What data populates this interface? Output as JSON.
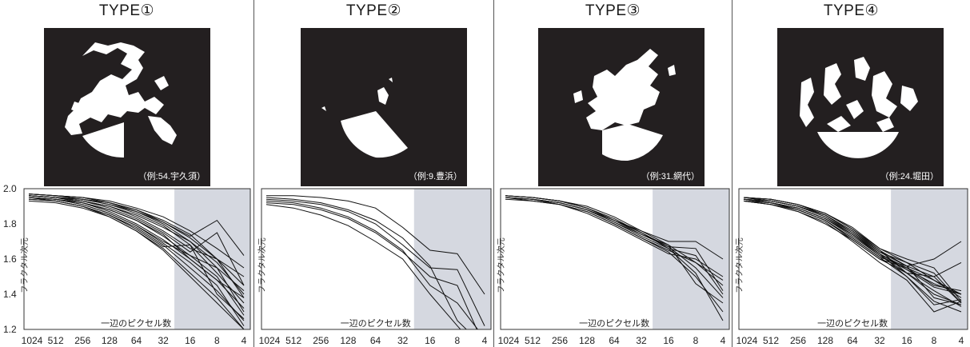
{
  "panels": [
    {
      "title": "TYPE①",
      "caption": "（例:54.宇久須）"
    },
    {
      "title": "TYPE②",
      "caption": "（例:9.豊浜）"
    },
    {
      "title": "TYPE③",
      "caption": "（例:31.網代）"
    },
    {
      "title": "TYPE④",
      "caption": "（例:24.堀田）"
    }
  ],
  "colors": {
    "shade": "#d5d8e0",
    "line": "#111111",
    "photo_bg": "#231f20"
  },
  "chart_data": [
    {
      "type": "line",
      "title": "TYPE①",
      "xlabel": "一辺のピクセル数",
      "ylabel": "フラクタル次元",
      "x": [
        1024,
        512,
        256,
        128,
        64,
        32,
        16,
        8,
        4
      ],
      "xticklabels": [
        "1024",
        "512",
        "256",
        "128",
        "64",
        "32",
        "16",
        "8",
        "4"
      ],
      "xscale": "log2-reversed",
      "ylim": [
        1.2,
        2.0
      ],
      "yticks": [
        "2.0",
        "1.8",
        "1.6",
        "1.4",
        "1.2"
      ],
      "shaded_x_range": [
        24,
        4
      ],
      "series": [
        {
          "values": [
            1.97,
            1.96,
            1.95,
            1.92,
            1.88,
            1.82,
            1.74,
            1.6,
            1.38
          ]
        },
        {
          "values": [
            1.96,
            1.95,
            1.93,
            1.9,
            1.85,
            1.78,
            1.7,
            1.58,
            1.4
          ]
        },
        {
          "values": [
            1.96,
            1.95,
            1.94,
            1.91,
            1.87,
            1.8,
            1.7,
            1.55,
            1.3
          ]
        },
        {
          "values": [
            1.95,
            1.94,
            1.92,
            1.88,
            1.82,
            1.73,
            1.62,
            1.5,
            1.28
          ]
        },
        {
          "values": [
            1.97,
            1.96,
            1.95,
            1.93,
            1.89,
            1.84,
            1.76,
            1.66,
            1.55
          ]
        },
        {
          "values": [
            1.95,
            1.94,
            1.91,
            1.86,
            1.79,
            1.69,
            1.58,
            1.45,
            1.22
          ]
        },
        {
          "values": [
            1.96,
            1.95,
            1.93,
            1.89,
            1.83,
            1.75,
            1.64,
            1.75,
            1.45
          ]
        },
        {
          "values": [
            1.94,
            1.93,
            1.9,
            1.85,
            1.78,
            1.68,
            1.55,
            1.42,
            1.25
          ]
        },
        {
          "values": [
            1.96,
            1.95,
            1.94,
            1.92,
            1.88,
            1.81,
            1.72,
            1.6,
            1.45
          ]
        },
        {
          "values": [
            1.93,
            1.92,
            1.89,
            1.84,
            1.76,
            1.66,
            1.52,
            1.38,
            1.2
          ]
        },
        {
          "values": [
            1.97,
            1.96,
            1.94,
            1.91,
            1.86,
            1.79,
            1.68,
            1.52,
            1.35
          ]
        },
        {
          "values": [
            1.95,
            1.94,
            1.92,
            1.87,
            1.8,
            1.71,
            1.6,
            1.48,
            1.32
          ]
        },
        {
          "values": [
            1.96,
            1.95,
            1.93,
            1.9,
            1.84,
            1.76,
            1.66,
            1.6,
            1.5
          ]
        },
        {
          "values": [
            1.94,
            1.93,
            1.9,
            1.84,
            1.76,
            1.65,
            1.5,
            1.35,
            1.2
          ]
        },
        {
          "values": [
            1.97,
            1.96,
            1.95,
            1.92,
            1.87,
            1.81,
            1.73,
            1.82,
            1.62
          ]
        },
        {
          "values": [
            1.95,
            1.94,
            1.91,
            1.86,
            1.79,
            1.7,
            1.62,
            1.55,
            1.42
          ]
        },
        {
          "values": [
            1.96,
            1.95,
            1.92,
            1.88,
            1.82,
            1.74,
            1.6,
            1.48,
            1.38
          ]
        },
        {
          "values": [
            1.95,
            1.93,
            1.9,
            1.85,
            1.77,
            1.67,
            1.68,
            1.4,
            1.26
          ]
        }
      ]
    },
    {
      "type": "line",
      "title": "TYPE②",
      "xlabel": "一辺のピクセル数",
      "ylabel": "フラクタル次元",
      "x": [
        1024,
        512,
        256,
        128,
        64,
        32,
        16,
        8,
        4
      ],
      "xticklabels": [
        "1024",
        "512",
        "256",
        "128",
        "64",
        "32",
        "16",
        "8",
        "4"
      ],
      "xscale": "log2-reversed",
      "ylim": [
        1.2,
        2.0
      ],
      "yticks": [
        "2.0",
        "1.8",
        "1.6",
        "1.4",
        "1.2"
      ],
      "shaded_x_range": [
        24,
        4
      ],
      "series": [
        {
          "values": [
            1.96,
            1.96,
            1.95,
            1.93,
            1.89,
            1.78,
            1.65,
            1.63,
            1.4
          ]
        },
        {
          "values": [
            1.94,
            1.93,
            1.91,
            1.87,
            1.8,
            1.68,
            1.55,
            1.54,
            1.22
          ]
        },
        {
          "values": [
            1.92,
            1.91,
            1.88,
            1.83,
            1.75,
            1.64,
            1.5,
            1.45,
            1.1
          ]
        },
        {
          "values": [
            1.93,
            1.92,
            1.89,
            1.84,
            1.76,
            1.65,
            1.45,
            1.35,
            1.15
          ]
        },
        {
          "values": [
            1.91,
            1.89,
            1.85,
            1.79,
            1.7,
            1.6,
            1.4,
            1.22,
            1.05
          ]
        },
        {
          "values": [
            1.95,
            1.94,
            1.92,
            1.88,
            1.82,
            1.72,
            1.56,
            1.25,
            1.1
          ]
        }
      ]
    },
    {
      "type": "line",
      "title": "TYPE③",
      "xlabel": "一辺のピクセル数",
      "ylabel": "フラクタル次元",
      "x": [
        1024,
        512,
        256,
        128,
        64,
        32,
        16,
        8,
        4
      ],
      "xticklabels": [
        "1024",
        "512",
        "256",
        "128",
        "64",
        "32",
        "16",
        "8",
        "4"
      ],
      "xscale": "log2-reversed",
      "ylim": [
        1.2,
        2.0
      ],
      "yticks": [
        "2.0",
        "1.8",
        "1.6",
        "1.4",
        "1.2"
      ],
      "shaded_x_range": [
        24,
        4
      ],
      "series": [
        {
          "values": [
            1.96,
            1.95,
            1.93,
            1.89,
            1.82,
            1.74,
            1.68,
            1.58,
            1.45
          ]
        },
        {
          "values": [
            1.95,
            1.94,
            1.92,
            1.88,
            1.81,
            1.73,
            1.66,
            1.62,
            1.4
          ]
        },
        {
          "values": [
            1.96,
            1.95,
            1.93,
            1.9,
            1.84,
            1.76,
            1.7,
            1.7,
            1.6
          ]
        },
        {
          "values": [
            1.95,
            1.94,
            1.92,
            1.88,
            1.82,
            1.75,
            1.67,
            1.55,
            1.38
          ]
        },
        {
          "values": [
            1.94,
            1.93,
            1.91,
            1.87,
            1.8,
            1.72,
            1.64,
            1.5,
            1.3
          ]
        },
        {
          "values": [
            1.96,
            1.95,
            1.93,
            1.89,
            1.83,
            1.75,
            1.66,
            1.52,
            1.25
          ]
        },
        {
          "values": [
            1.95,
            1.94,
            1.92,
            1.88,
            1.81,
            1.74,
            1.67,
            1.66,
            1.42
          ]
        },
        {
          "values": [
            1.95,
            1.94,
            1.91,
            1.87,
            1.8,
            1.72,
            1.65,
            1.58,
            1.48
          ]
        },
        {
          "values": [
            1.96,
            1.95,
            1.93,
            1.89,
            1.82,
            1.76,
            1.68,
            1.46,
            1.35
          ]
        },
        {
          "values": [
            1.95,
            1.93,
            1.91,
            1.86,
            1.79,
            1.71,
            1.63,
            1.6,
            1.5
          ]
        }
      ]
    },
    {
      "type": "line",
      "title": "TYPE④",
      "xlabel": "一辺のピクセル数",
      "ylabel": "フラクタル次元",
      "x": [
        1024,
        512,
        256,
        128,
        64,
        32,
        16,
        8,
        4
      ],
      "xticklabels": [
        "1024",
        "512",
        "256",
        "128",
        "64",
        "32",
        "16",
        "8",
        "4"
      ],
      "xscale": "log2-reversed",
      "ylim": [
        1.2,
        2.0
      ],
      "yticks": [
        "2.0",
        "1.8",
        "1.6",
        "1.4",
        "1.2"
      ],
      "shaded_x_range": [
        24,
        4
      ],
      "series": [
        {
          "values": [
            1.95,
            1.94,
            1.91,
            1.86,
            1.77,
            1.66,
            1.58,
            1.48,
            1.38
          ]
        },
        {
          "values": [
            1.94,
            1.92,
            1.89,
            1.83,
            1.74,
            1.63,
            1.55,
            1.45,
            1.42
          ]
        },
        {
          "values": [
            1.95,
            1.93,
            1.9,
            1.85,
            1.76,
            1.65,
            1.56,
            1.5,
            1.35
          ]
        },
        {
          "values": [
            1.93,
            1.91,
            1.87,
            1.8,
            1.71,
            1.6,
            1.52,
            1.4,
            1.34
          ]
        },
        {
          "values": [
            1.95,
            1.94,
            1.91,
            1.85,
            1.75,
            1.64,
            1.56,
            1.6,
            1.7
          ]
        },
        {
          "values": [
            1.94,
            1.92,
            1.88,
            1.82,
            1.72,
            1.61,
            1.5,
            1.34,
            1.37
          ]
        },
        {
          "values": [
            1.94,
            1.93,
            1.9,
            1.84,
            1.74,
            1.62,
            1.54,
            1.46,
            1.4
          ]
        },
        {
          "values": [
            1.93,
            1.91,
            1.87,
            1.81,
            1.7,
            1.58,
            1.48,
            1.3,
            1.36
          ]
        },
        {
          "values": [
            1.95,
            1.94,
            1.91,
            1.86,
            1.78,
            1.66,
            1.6,
            1.55,
            1.36
          ]
        },
        {
          "values": [
            1.94,
            1.92,
            1.89,
            1.83,
            1.73,
            1.62,
            1.52,
            1.42,
            1.33
          ]
        },
        {
          "values": [
            1.93,
            1.92,
            1.88,
            1.82,
            1.71,
            1.6,
            1.55,
            1.48,
            1.4
          ]
        },
        {
          "values": [
            1.95,
            1.93,
            1.9,
            1.84,
            1.75,
            1.63,
            1.5,
            1.36,
            1.3
          ]
        },
        {
          "values": [
            1.94,
            1.93,
            1.9,
            1.85,
            1.76,
            1.64,
            1.58,
            1.52,
            1.35
          ]
        },
        {
          "values": [
            1.95,
            1.94,
            1.91,
            1.86,
            1.77,
            1.65,
            1.52,
            1.5,
            1.58
          ]
        },
        {
          "values": [
            1.93,
            1.91,
            1.88,
            1.82,
            1.72,
            1.61,
            1.56,
            1.38,
            1.34
          ]
        },
        {
          "values": [
            1.94,
            1.92,
            1.89,
            1.83,
            1.74,
            1.63,
            1.54,
            1.44,
            1.4
          ]
        }
      ]
    }
  ]
}
